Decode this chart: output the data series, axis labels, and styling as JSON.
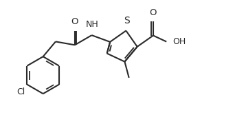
{
  "background_color": "#ffffff",
  "line_color": "#2a2a2a",
  "line_width": 1.5,
  "font_size": 8.5,
  "figsize": [
    3.58,
    1.67
  ],
  "dpi": 100,
  "xlim": [
    0,
    9.0
  ],
  "ylim": [
    0,
    4.2
  ]
}
